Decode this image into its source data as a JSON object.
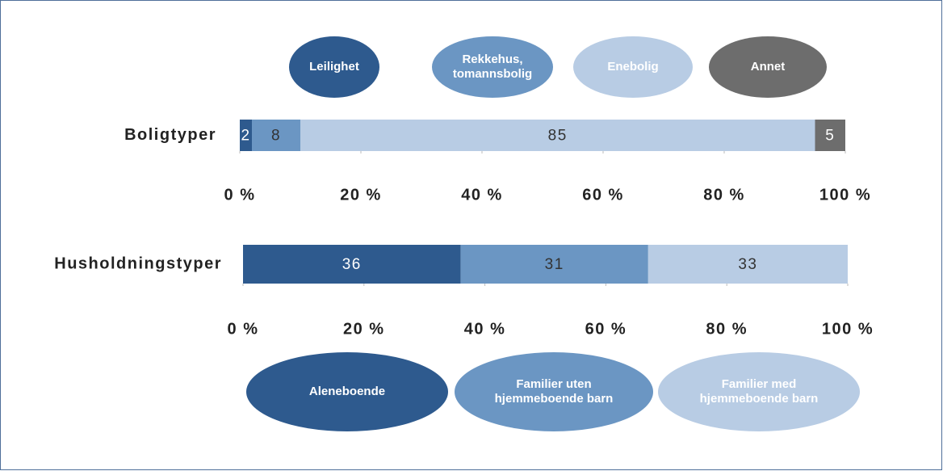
{
  "chart_data": [
    {
      "type": "bar",
      "orientation": "horizontal",
      "stacked": true,
      "categories": [
        "Boligtyper"
      ],
      "series": [
        {
          "name": "Leilighet",
          "color": "#2e5a8e",
          "values": [
            2
          ]
        },
        {
          "name": "Rekkehus, tomannsbolig",
          "color": "#6b96c3",
          "values": [
            8
          ]
        },
        {
          "name": "Enebolig",
          "color": "#b8cce4",
          "values": [
            85
          ]
        },
        {
          "name": "Annet",
          "color": "#6d6d6d",
          "values": [
            5
          ]
        }
      ],
      "xlim": [
        0,
        100
      ],
      "xticks": [
        {
          "value": 0,
          "label": "0 %"
        },
        {
          "value": 20,
          "label": "20 %"
        },
        {
          "value": 40,
          "label": "40 %"
        },
        {
          "value": 60,
          "label": "60 %"
        },
        {
          "value": 80,
          "label": "80 %"
        },
        {
          "value": 100,
          "label": "100 %"
        }
      ],
      "legend": "top"
    },
    {
      "type": "bar",
      "orientation": "horizontal",
      "stacked": true,
      "categories": [
        "Husholdningstyper"
      ],
      "series": [
        {
          "name": "Aleneboende",
          "color": "#2e5a8e",
          "values": [
            36
          ]
        },
        {
          "name": "Familier uten hjemmeboende barn",
          "color": "#6b96c3",
          "values": [
            31
          ]
        },
        {
          "name": "Familier med hjemmeboende barn",
          "color": "#b8cce4",
          "values": [
            33
          ]
        }
      ],
      "xlim": [
        0,
        100
      ],
      "xticks": [
        {
          "value": 0,
          "label": "0 %"
        },
        {
          "value": 20,
          "label": "20 %"
        },
        {
          "value": 40,
          "label": "40 %"
        },
        {
          "value": 60,
          "label": "60 %"
        },
        {
          "value": 80,
          "label": "80 %"
        },
        {
          "value": 100,
          "label": "100 %"
        }
      ],
      "legend": "bottom"
    }
  ]
}
